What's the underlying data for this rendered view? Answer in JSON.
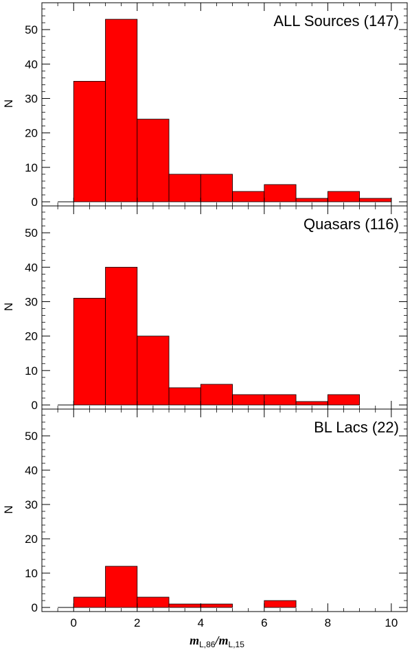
{
  "chart_data": [
    {
      "type": "bar",
      "title": "ALL Sources (147)",
      "ylabel": "N",
      "xlim": [
        -1,
        10.5
      ],
      "ylim": [
        0,
        57
      ],
      "yticks": [
        0,
        10,
        20,
        30,
        40,
        50
      ],
      "bin_edges": [
        0,
        1,
        2,
        3,
        4,
        5,
        6,
        7,
        8,
        9,
        10
      ],
      "values": [
        35,
        53,
        24,
        8,
        8,
        3,
        5,
        1,
        3,
        1
      ],
      "color": "#ff0000"
    },
    {
      "type": "bar",
      "title": "Quasars (116)",
      "ylabel": "N",
      "xlim": [
        -1,
        10.5
      ],
      "ylim": [
        0,
        57
      ],
      "yticks": [
        0,
        10,
        20,
        30,
        40,
        50
      ],
      "bin_edges": [
        0,
        1,
        2,
        3,
        4,
        5,
        6,
        7,
        8,
        9,
        10
      ],
      "values": [
        31,
        40,
        20,
        5,
        6,
        3,
        3,
        1,
        3,
        0
      ],
      "color": "#ff0000"
    },
    {
      "type": "bar",
      "title": "BL Lacs (22)",
      "ylabel": "N",
      "xlim": [
        -1,
        10.5
      ],
      "ylim": [
        0,
        57
      ],
      "yticks": [
        0,
        10,
        20,
        30,
        40,
        50
      ],
      "bin_edges": [
        0,
        1,
        2,
        3,
        4,
        5,
        6,
        7,
        8,
        9,
        10
      ],
      "values": [
        3,
        12,
        3,
        1,
        1,
        0,
        2,
        0,
        0,
        0
      ],
      "color": "#ff0000"
    }
  ],
  "xaxis": {
    "ticks": [
      0,
      2,
      4,
      6,
      8,
      10
    ],
    "label_main_1": "m",
    "label_sub_1": "L,86",
    "label_sep": "/",
    "label_main_2": "m",
    "label_sub_2": "L,15"
  }
}
